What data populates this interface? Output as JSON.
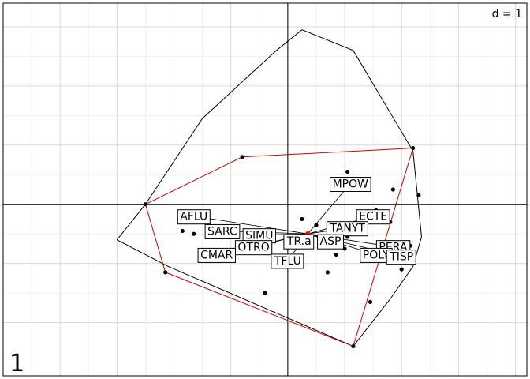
{
  "chart_data": {
    "type": "scatter",
    "scale_label": "d = 1",
    "panel_label": "1",
    "grid": true,
    "xlim": [
      -5.0,
      4.2
    ],
    "ylim": [
      -2.9,
      3.4
    ],
    "grid_step": 1,
    "hull_outer": [
      [
        -2.5,
        0
      ],
      [
        -3.0,
        -0.6
      ],
      [
        -2.1,
        -1.05
      ],
      [
        1.15,
        -2.4
      ],
      [
        1.8,
        -1.6
      ],
      [
        2.2,
        -1.05
      ],
      [
        2.35,
        -0.55
      ],
      [
        2.2,
        0.9
      ],
      [
        1.15,
        2.6
      ],
      [
        0.25,
        2.95
      ],
      [
        -0.2,
        2.6
      ],
      [
        -1.5,
        1.45
      ]
    ],
    "hull_inner": [
      [
        -2.5,
        0
      ],
      [
        -0.8,
        0.8
      ],
      [
        2.2,
        0.95
      ],
      [
        1.15,
        -2.4
      ],
      [
        -2.15,
        -1.15
      ]
    ],
    "center": [
      0.35,
      -0.5
    ],
    "points": [
      [
        -2.5,
        0
      ],
      [
        -0.8,
        0.8
      ],
      [
        2.2,
        0.95
      ],
      [
        2.3,
        0.15
      ],
      [
        1.05,
        0.55
      ],
      [
        1.85,
        0.25
      ],
      [
        1.55,
        -0.1
      ],
      [
        1.8,
        -0.3
      ],
      [
        1.05,
        -0.55
      ],
      [
        0.85,
        -0.85
      ],
      [
        2.15,
        -0.7
      ],
      [
        2.1,
        -0.9
      ],
      [
        0.7,
        -1.15
      ],
      [
        2.0,
        -1.1
      ],
      [
        1.45,
        -1.65
      ],
      [
        -0.4,
        -1.5
      ],
      [
        1.15,
        -2.4
      ],
      [
        -2.15,
        -1.15
      ],
      [
        -1.65,
        -0.5
      ],
      [
        -1.85,
        -0.45
      ],
      [
        0.25,
        -0.25
      ],
      [
        0.5,
        -0.35
      ],
      [
        0.55,
        -0.6
      ],
      [
        0.15,
        -0.55
      ],
      [
        1.0,
        -0.75
      ],
      [
        -0.35,
        -0.55
      ]
    ],
    "labels": [
      {
        "text": "MPOW",
        "x": 1.1,
        "y": 0.35
      },
      {
        "text": "AFLU",
        "x": -1.65,
        "y": -0.2
      },
      {
        "text": "ECTE",
        "x": 1.5,
        "y": -0.2
      },
      {
        "text": "SARC",
        "x": -1.15,
        "y": -0.45
      },
      {
        "text": "TANYT",
        "x": 1.05,
        "y": -0.4
      },
      {
        "text": "SIMU",
        "x": -0.5,
        "y": -0.52
      },
      {
        "text": "OTRO",
        "x": -0.6,
        "y": -0.72
      },
      {
        "text": "ASP",
        "x": 0.75,
        "y": -0.62
      },
      {
        "text": "TR.a",
        "x": 0.2,
        "y": -0.62
      },
      {
        "text": "PERA",
        "x": 1.85,
        "y": -0.72
      },
      {
        "text": "POLY",
        "x": 1.55,
        "y": -0.85
      },
      {
        "text": "TISP",
        "x": 2.0,
        "y": -0.88
      },
      {
        "text": "CMAR",
        "x": -1.25,
        "y": -0.85
      },
      {
        "text": "TFLU",
        "x": 0.0,
        "y": -0.95
      }
    ]
  }
}
